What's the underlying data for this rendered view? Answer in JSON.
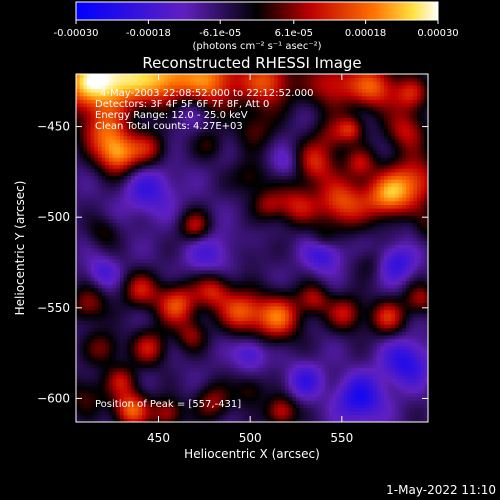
{
  "chart_data": {
    "type": "heatmap",
    "title": "Reconstructed RHESSI Image",
    "xlabel": "Heliocentric X (arcsec)",
    "ylabel": "Heliocentric Y (arcsec)",
    "xlim": [
      405,
      597
    ],
    "ylim": [
      -613,
      -421
    ],
    "xticks": [
      450,
      500,
      550
    ],
    "xtick_labels": [
      "450",
      "500",
      "550"
    ],
    "yticks": [
      -450,
      -500,
      -550,
      -600
    ],
    "ytick_labels": [
      "−450",
      "−500",
      "−550",
      "−600"
    ],
    "colorbar": {
      "range": [
        -0.0003,
        0.0003
      ],
      "ticks": [
        -0.0003,
        -0.00018,
        -6.1e-05,
        6.1e-05,
        0.00018,
        0.0003
      ],
      "tick_labels": [
        "-0.00030",
        "-0.00018",
        "-6.1e-05",
        "6.1e-05",
        "0.00018",
        "0.00030"
      ],
      "unit_label": "(photons cm⁻² s⁻¹ asec⁻²)"
    },
    "info_lines": [
      "4-May-2003 22:08:52.000 to 22:12:52.000",
      "Detectors: 3F 4F 5F 6F 7F 8F, Att 0",
      "Energy Range: 12.0 - 25.0 keV",
      "Clean    Total counts: 4.27E+03"
    ],
    "peak_label": "Position of Peak = [557,-431]",
    "blobs": [
      {
        "x": 410,
        "y": -425,
        "r": 12,
        "v": 0.00026
      },
      {
        "x": 430,
        "y": -423,
        "r": 12,
        "v": 0.00028
      },
      {
        "x": 455,
        "y": -423,
        "r": 11,
        "v": 0.00026
      },
      {
        "x": 480,
        "y": -424,
        "r": 11,
        "v": 0.00024
      },
      {
        "x": 510,
        "y": -425,
        "r": 10,
        "v": 0.00022
      },
      {
        "x": 545,
        "y": -426,
        "r": 10,
        "v": 0.00018
      },
      {
        "x": 568,
        "y": -428,
        "r": 9,
        "v": 0.00022
      },
      {
        "x": 588,
        "y": -432,
        "r": 7,
        "v": 0.00016
      },
      {
        "x": 420,
        "y": -452,
        "r": 9,
        "v": 0.00018
      },
      {
        "x": 428,
        "y": -465,
        "r": 8,
        "v": 0.00026
      },
      {
        "x": 445,
        "y": -462,
        "r": 7,
        "v": 0.00014
      },
      {
        "x": 503,
        "y": -451,
        "r": 8,
        "v": 0.0001
      },
      {
        "x": 478,
        "y": -460,
        "r": 6,
        "v": 8e-05
      },
      {
        "x": 545,
        "y": -455,
        "r": 7,
        "v": 0.00012
      },
      {
        "x": 555,
        "y": -451,
        "r": 5,
        "v": 0.00015
      },
      {
        "x": 585,
        "y": -452,
        "r": 8,
        "v": 0.00016
      },
      {
        "x": 535,
        "y": -470,
        "r": 8,
        "v": 0.00018
      },
      {
        "x": 560,
        "y": -470,
        "r": 6,
        "v": 0.00014
      },
      {
        "x": 590,
        "y": -480,
        "r": 10,
        "v": 0.0002
      },
      {
        "x": 575,
        "y": -488,
        "r": 9,
        "v": 0.00024
      },
      {
        "x": 550,
        "y": -492,
        "r": 10,
        "v": 0.00022
      },
      {
        "x": 525,
        "y": -493,
        "r": 8,
        "v": 0.00016
      },
      {
        "x": 500,
        "y": -478,
        "r": 7,
        "v": 0.0001
      },
      {
        "x": 510,
        "y": -493,
        "r": 6,
        "v": 0.00012
      },
      {
        "x": 470,
        "y": -505,
        "r": 6,
        "v": 0.00016
      },
      {
        "x": 420,
        "y": -508,
        "r": 6,
        "v": 8e-05
      },
      {
        "x": 540,
        "y": -512,
        "r": 5,
        "v": 8e-05
      },
      {
        "x": 595,
        "y": -505,
        "r": 6,
        "v": 0.0001
      },
      {
        "x": 565,
        "y": -525,
        "r": 6,
        "v": 6e-05
      },
      {
        "x": 500,
        "y": -520,
        "r": 6,
        "v": 4e-05
      },
      {
        "x": 412,
        "y": -548,
        "r": 7,
        "v": 0.00014
      },
      {
        "x": 440,
        "y": -540,
        "r": 7,
        "v": 0.00016
      },
      {
        "x": 460,
        "y": -548,
        "r": 8,
        "v": 0.00022
      },
      {
        "x": 480,
        "y": -540,
        "r": 7,
        "v": 0.00018
      },
      {
        "x": 495,
        "y": -552,
        "r": 8,
        "v": 0.00022
      },
      {
        "x": 515,
        "y": -555,
        "r": 9,
        "v": 0.00024
      },
      {
        "x": 535,
        "y": -545,
        "r": 6,
        "v": 0.00014
      },
      {
        "x": 552,
        "y": -553,
        "r": 7,
        "v": 0.00016
      },
      {
        "x": 575,
        "y": -555,
        "r": 7,
        "v": 0.00018
      },
      {
        "x": 593,
        "y": -545,
        "r": 6,
        "v": 0.00014
      },
      {
        "x": 420,
        "y": -572,
        "r": 7,
        "v": 0.00012
      },
      {
        "x": 445,
        "y": -572,
        "r": 7,
        "v": 0.00016
      },
      {
        "x": 468,
        "y": -565,
        "r": 6,
        "v": 0.00012
      },
      {
        "x": 430,
        "y": -590,
        "r": 6,
        "v": 0.00014
      },
      {
        "x": 410,
        "y": -598,
        "r": 8,
        "v": 0.0001
      },
      {
        "x": 435,
        "y": -606,
        "r": 7,
        "v": 0.00024
      },
      {
        "x": 455,
        "y": -608,
        "r": 6,
        "v": 0.00016
      },
      {
        "x": 480,
        "y": -602,
        "r": 7,
        "v": 0.00014
      },
      {
        "x": 500,
        "y": -595,
        "r": 6,
        "v": 0.0001
      },
      {
        "x": 517,
        "y": -607,
        "r": 6,
        "v": 0.00018
      },
      {
        "x": 445,
        "y": -485,
        "r": 10,
        "v": -0.00012
      },
      {
        "x": 478,
        "y": -520,
        "r": 9,
        "v": -0.0001
      },
      {
        "x": 540,
        "y": -520,
        "r": 7,
        "v": -0.00014
      },
      {
        "x": 580,
        "y": -525,
        "r": 7,
        "v": -0.00014
      },
      {
        "x": 585,
        "y": -580,
        "r": 9,
        "v": -0.00016
      },
      {
        "x": 560,
        "y": -600,
        "r": 9,
        "v": -0.00018
      },
      {
        "x": 530,
        "y": -590,
        "r": 7,
        "v": -0.00012
      },
      {
        "x": 500,
        "y": -575,
        "r": 6,
        "v": -0.00012
      },
      {
        "x": 420,
        "y": -530,
        "r": 6,
        "v": -0.0001
      },
      {
        "x": 520,
        "y": -470,
        "r": 6,
        "v": -8e-05
      },
      {
        "x": 465,
        "y": -440,
        "r": 7,
        "v": -8e-05
      },
      {
        "x": 590,
        "y": -505,
        "r": 5,
        "v": -6e-05
      }
    ]
  },
  "footer_timestamp": "1-May-2022 11:10"
}
